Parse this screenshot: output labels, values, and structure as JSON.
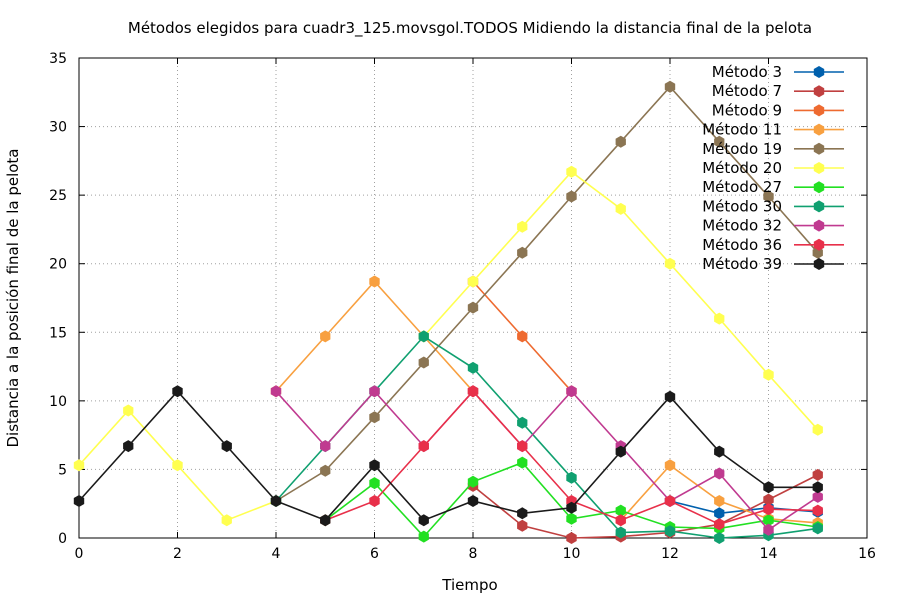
{
  "chart_data": {
    "type": "line",
    "title": "Métodos elegidos para cuadr3_125.movsgol.TODOS Midiendo la distancia final de la pelota",
    "xlabel": "Tiempo",
    "ylabel": "Distancia a la posición final de la pelota",
    "xlim": [
      0,
      16
    ],
    "ylim": [
      0,
      35
    ],
    "xticks": [
      0,
      2,
      4,
      6,
      8,
      10,
      12,
      14,
      16
    ],
    "yticks": [
      0,
      5,
      10,
      15,
      20,
      25,
      30,
      35
    ],
    "grid": true,
    "legend_position": "top-right",
    "x": [
      0,
      1,
      2,
      3,
      4,
      5,
      6,
      7,
      8,
      9,
      10,
      11,
      12,
      13,
      14,
      15
    ],
    "series": [
      {
        "name": "Método 3",
        "color": "#0060ad",
        "values": [
          null,
          null,
          null,
          null,
          null,
          null,
          null,
          null,
          null,
          null,
          null,
          null,
          2.7,
          1.8,
          2.2,
          1.9
        ]
      },
      {
        "name": "Método 7",
        "color": "#c04040",
        "values": [
          null,
          null,
          null,
          null,
          null,
          null,
          null,
          null,
          3.8,
          0.9,
          0.0,
          0.1,
          0.4,
          1.0,
          2.8,
          4.6
        ]
      },
      {
        "name": "Método 9",
        "color": "#ee6a30",
        "values": [
          null,
          null,
          null,
          null,
          null,
          null,
          null,
          null,
          18.7,
          14.7,
          10.7,
          null,
          null,
          null,
          null,
          null
        ]
      },
      {
        "name": "Método 11",
        "color": "#f8a040",
        "values": [
          null,
          null,
          null,
          null,
          10.7,
          14.7,
          18.7,
          14.7,
          10.7,
          null,
          null,
          1.3,
          5.3,
          2.7,
          1.4,
          1.1
        ]
      },
      {
        "name": "Método 19",
        "color": "#8b7553",
        "values": [
          null,
          null,
          null,
          null,
          2.7,
          4.9,
          8.8,
          12.8,
          16.8,
          20.8,
          24.9,
          28.9,
          32.9,
          28.9,
          24.9,
          20.8
        ]
      },
      {
        "name": "Método 20",
        "color": "#ffff50",
        "values": [
          5.3,
          9.3,
          5.3,
          1.3,
          2.7,
          null,
          null,
          14.7,
          18.7,
          22.7,
          26.7,
          24.0,
          20.0,
          16.0,
          11.9,
          7.9
        ]
      },
      {
        "name": "Método 27",
        "color": "#22e022",
        "values": [
          null,
          null,
          null,
          null,
          null,
          1.3,
          4.0,
          0.1,
          4.1,
          5.5,
          1.4,
          2.0,
          0.8,
          0.7,
          1.3,
          0.8
        ]
      },
      {
        "name": "Método 30",
        "color": "#10a070",
        "values": [
          null,
          null,
          null,
          null,
          2.7,
          6.7,
          10.7,
          14.7,
          12.4,
          8.4,
          4.4,
          0.4,
          0.5,
          0.0,
          0.2,
          0.7
        ]
      },
      {
        "name": "Método 32",
        "color": "#c03a90",
        "values": [
          null,
          null,
          null,
          null,
          10.7,
          6.7,
          10.7,
          6.7,
          10.7,
          6.7,
          10.7,
          6.7,
          2.7,
          4.7,
          0.6,
          3.0
        ]
      },
      {
        "name": "Método 36",
        "color": "#e8304a",
        "values": [
          null,
          null,
          null,
          null,
          null,
          1.3,
          2.7,
          6.7,
          10.7,
          6.7,
          2.7,
          1.3,
          2.7,
          1.0,
          2.1,
          2.0
        ]
      },
      {
        "name": "Método 39",
        "color": "#1a1a1a",
        "values": [
          2.7,
          6.7,
          10.7,
          6.7,
          2.7,
          1.3,
          5.3,
          1.3,
          2.7,
          1.8,
          2.2,
          6.3,
          10.3,
          6.3,
          3.7,
          3.7
        ]
      }
    ]
  }
}
